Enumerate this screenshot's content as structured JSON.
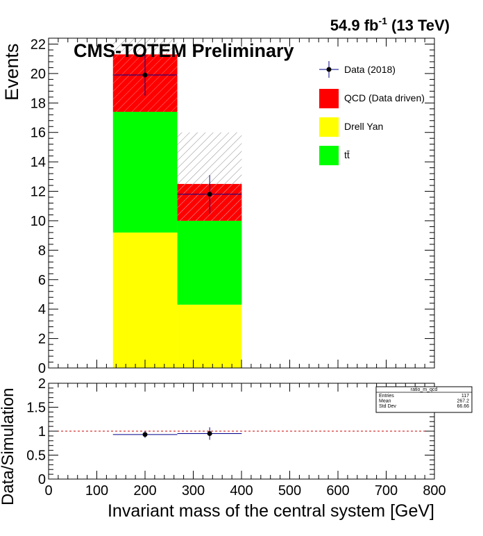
{
  "lumi_label": "54.9 fb",
  "lumi_sup": "-1",
  "lumi_energy": " (13 TeV)",
  "experiment_label": "CMS-TOTEM Preliminary",
  "colors": {
    "qcd": "#ff0000",
    "drell_yan": "#ffff00",
    "ttbar": "#00ff00",
    "data_marker": "#000000",
    "data_errbar": "#00008b",
    "reference_line": "#cc0000",
    "hatch": "#8a8a8a"
  },
  "chart_data": [
    {
      "type": "bar",
      "stacked": true,
      "ylabel": "Events",
      "xlim": [
        0,
        800
      ],
      "ylim": [
        0,
        22.4
      ],
      "x_ticks": [
        0,
        100,
        200,
        300,
        400,
        500,
        600,
        700,
        800
      ],
      "x_tick_labels": [
        "0",
        "100",
        "200",
        "300",
        "400",
        "500",
        "600",
        "700",
        "800"
      ],
      "y_ticks": [
        0,
        2,
        4,
        6,
        8,
        10,
        12,
        14,
        16,
        18,
        20,
        22
      ],
      "y_tick_labels": [
        "0",
        "2",
        "4",
        "6",
        "8",
        "10",
        "12",
        "14",
        "16",
        "18",
        "20",
        "22"
      ],
      "bin_edges": [
        133.5,
        267,
        400.5
      ],
      "series": [
        {
          "name": "Drell Yan",
          "key": "drell_yan",
          "values": [
            9.2,
            4.3
          ]
        },
        {
          "name": "tt̄",
          "key": "ttbar",
          "values": [
            8.2,
            5.7
          ]
        },
        {
          "name": "QCD (Data driven)",
          "key": "qcd",
          "values": [
            3.9,
            2.5
          ]
        }
      ],
      "uncertainty_band": {
        "low": [
          21.3,
          10.0
        ],
        "high": [
          22.5,
          16.0
        ]
      },
      "data": {
        "name": "Data (2018)",
        "x": [
          200,
          334
        ],
        "y": [
          19.9,
          11.8
        ],
        "yerr": [
          1.4,
          1.3
        ]
      },
      "legend": [
        {
          "label": "Data (2018)",
          "key": "data_marker",
          "kind": "marker"
        },
        {
          "label": "QCD (Data driven)",
          "key": "qcd",
          "kind": "box"
        },
        {
          "label": "Drell Yan",
          "key": "drell_yan",
          "kind": "box"
        },
        {
          "label": "tt̄",
          "key": "ttbar",
          "kind": "box"
        }
      ],
      "legend_placement": "top-right"
    },
    {
      "type": "scatter",
      "xlabel": "Invariant mass of the central system [GeV]",
      "ylabel": "Data/Simulation",
      "xlim": [
        0,
        800
      ],
      "ylim": [
        0,
        2
      ],
      "x_ticks": [
        0,
        100,
        200,
        300,
        400,
        500,
        600,
        700,
        800
      ],
      "x_tick_labels": [
        "0",
        "100",
        "200",
        "300",
        "400",
        "500",
        "600",
        "700",
        "800"
      ],
      "y_ticks": [
        0,
        0.5,
        1,
        1.5,
        2
      ],
      "y_tick_labels": [
        "0",
        "0.5",
        "1",
        "1.5",
        "2"
      ],
      "reference_line": 1,
      "points": [
        {
          "x": 200,
          "y": 0.93,
          "yerr": 0.07,
          "xlow": 133.5,
          "xhigh": 267
        },
        {
          "x": 334,
          "y": 0.95,
          "yerr": 0.13,
          "xlow": 267,
          "xhigh": 400.5
        }
      ]
    }
  ],
  "stats_box": {
    "title": "ratio_m_qcd",
    "rows": [
      {
        "label": "Entries",
        "value": "117"
      },
      {
        "label": "Mean",
        "value": "267.2"
      },
      {
        "label": "Std Dev",
        "value": "66.66"
      }
    ]
  }
}
